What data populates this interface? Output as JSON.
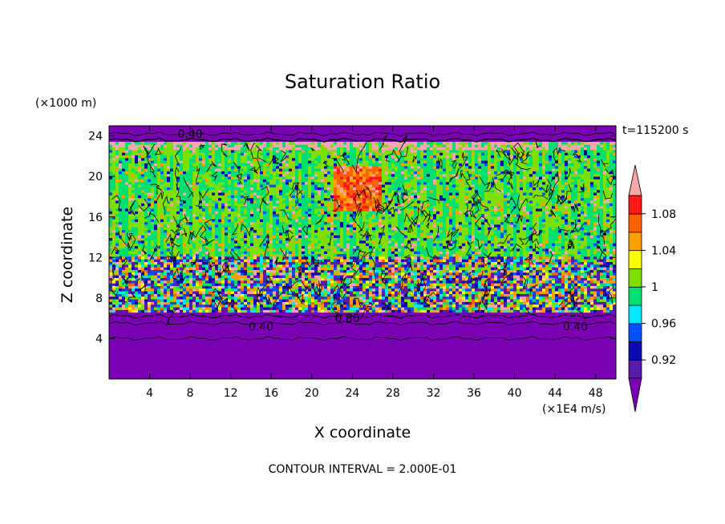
{
  "chart_data": {
    "type": "heatmap",
    "title": "Saturation Ratio",
    "xlabel": "X coordinate",
    "ylabel": "Z coordinate",
    "x_unit": "(×1E4 m/s)",
    "y_unit": "(×1000 m)",
    "time_label": "t=115200 s",
    "footer": "CONTOUR INTERVAL = 2.000E-01",
    "xlim": [
      0,
      50
    ],
    "ylim": [
      0,
      25
    ],
    "x_ticks": [
      4,
      8,
      12,
      16,
      20,
      24,
      28,
      32,
      36,
      40,
      44,
      48
    ],
    "y_ticks": [
      4,
      8,
      12,
      16,
      20,
      24
    ],
    "contour_labels": [
      {
        "text": "0.40",
        "x": 8,
        "z": 24.2
      },
      {
        "text": "0.80",
        "x": 23.5,
        "z": 6.0
      },
      {
        "text": "0.40",
        "x": 15,
        "z": 5.2
      },
      {
        "text": "0.40",
        "x": 46,
        "z": 5.2
      }
    ],
    "colorbar": {
      "levels": [
        0.9,
        0.92,
        0.94,
        0.96,
        0.98,
        1.0,
        1.02,
        1.04,
        1.06,
        1.08,
        1.1
      ],
      "tick_labels": [
        "0.92",
        "0.96",
        "1",
        "1.04",
        "1.08"
      ],
      "under_color": "#7a00b4",
      "over_color": "#f4a8a8",
      "colors": [
        "#5a1aa8",
        "#0a0ab0",
        "#0050ff",
        "#00e8ff",
        "#00e070",
        "#7ee000",
        "#ffff00",
        "#ffa000",
        "#ff6000",
        "#ff1818"
      ]
    },
    "layers": [
      {
        "z_from": 0,
        "z_to": 6.5,
        "value": "< 0.90",
        "color": "#7a00b4"
      },
      {
        "z_from": 6.5,
        "z_to": 12,
        "value": "0.90 – 1.10 (mixed)"
      },
      {
        "z_from": 12,
        "z_to": 23.5,
        "value": "0.98 – 1.10 (mostly 1.00 – 1.02)"
      },
      {
        "z_from": 23.5,
        "z_to": 25,
        "value": "< 0.90",
        "color": "#7a00b4"
      }
    ]
  }
}
